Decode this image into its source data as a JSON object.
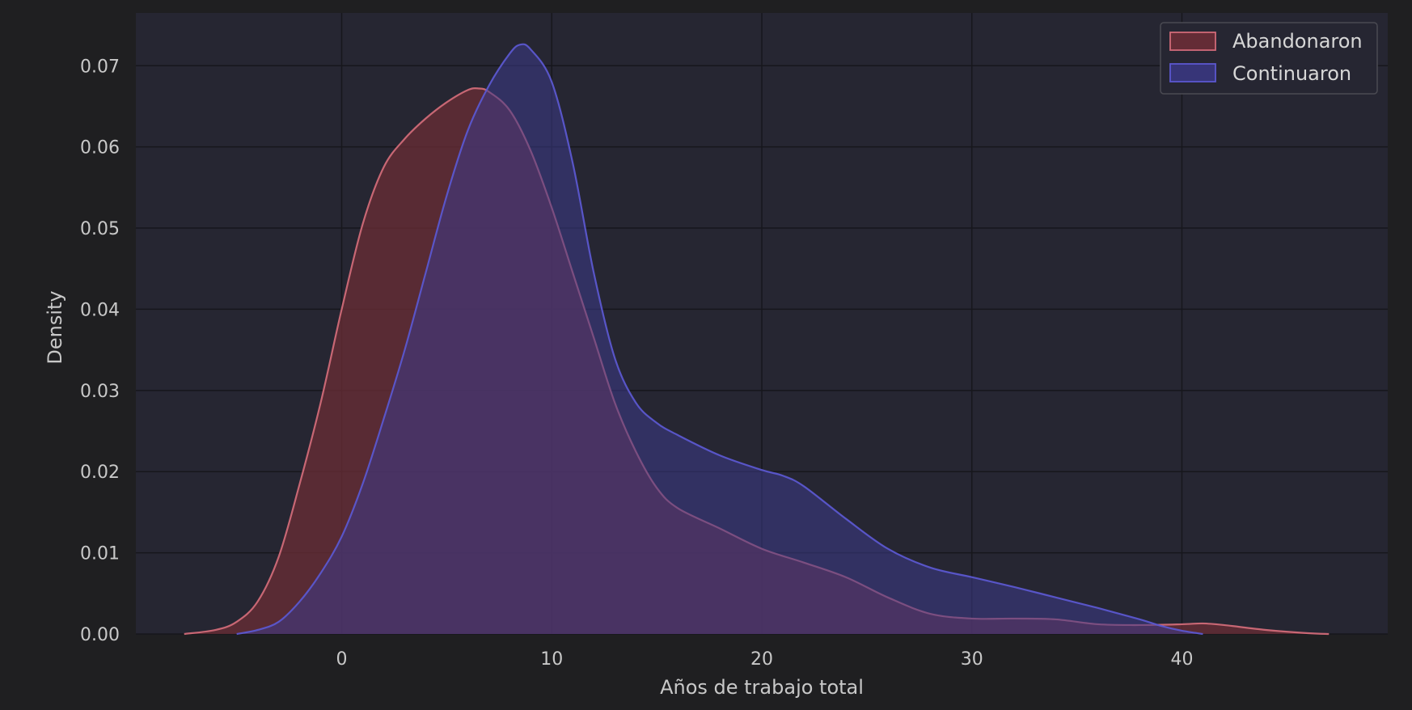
{
  "chart_data": {
    "type": "area",
    "title": "",
    "xlabel": "Años de trabajo total",
    "ylabel": "Density",
    "xlim": [
      -9.8,
      49.8
    ],
    "ylim": [
      0,
      0.0765
    ],
    "xticks": [
      0,
      10,
      20,
      30,
      40
    ],
    "yticks": [
      0.0,
      0.01,
      0.02,
      0.03,
      0.04,
      0.05,
      0.06,
      0.07
    ],
    "ytick_labels": [
      "0.00",
      "0.01",
      "0.02",
      "0.03",
      "0.04",
      "0.05",
      "0.06",
      "0.07"
    ],
    "grid": true,
    "legend_position": "top-right",
    "colors": {
      "figure_bg": "#1f1f21",
      "plot_bg": "#262632",
      "grid": "#17171c",
      "abandonaron_fill": "#6b2d36",
      "abandonaron_line": "#d06a78",
      "continuaron_fill": "#3c3a8a",
      "continuaron_line": "#5b57cf"
    },
    "series": [
      {
        "name": "Abandonaron",
        "x": [
          -7.5,
          -6,
          -5,
          -4,
          -3,
          -2,
          -1,
          0,
          1,
          2,
          3,
          4,
          5,
          6,
          6.5,
          7,
          8,
          9,
          10,
          11,
          12,
          13,
          14,
          15,
          16,
          18,
          20,
          22,
          24,
          26,
          28,
          30,
          32,
          34,
          36,
          38,
          40,
          41,
          42,
          44,
          46,
          47
        ],
        "y": [
          0.0,
          0.0005,
          0.0015,
          0.004,
          0.0095,
          0.0185,
          0.0285,
          0.04,
          0.0505,
          0.0575,
          0.061,
          0.0635,
          0.0655,
          0.067,
          0.0672,
          0.0668,
          0.0645,
          0.0595,
          0.0525,
          0.0445,
          0.0365,
          0.0285,
          0.0225,
          0.018,
          0.0155,
          0.013,
          0.0105,
          0.0088,
          0.007,
          0.0045,
          0.0025,
          0.0019,
          0.0019,
          0.0018,
          0.0012,
          0.0011,
          0.0012,
          0.0013,
          0.0011,
          0.0005,
          0.0001,
          0.0
        ]
      },
      {
        "name": "Continuaron",
        "x": [
          -5,
          -4,
          -3,
          -2,
          -1,
          0,
          1,
          2,
          3,
          4,
          5,
          6,
          7,
          8,
          8.5,
          9,
          10,
          11,
          12,
          13,
          14,
          15,
          16,
          18,
          20,
          21,
          22,
          24,
          26,
          28,
          30,
          32,
          34,
          36,
          38,
          39,
          40,
          41
        ],
        "y": [
          0.0,
          0.0005,
          0.0015,
          0.004,
          0.0075,
          0.012,
          0.0185,
          0.0265,
          0.035,
          0.0445,
          0.054,
          0.062,
          0.0675,
          0.0715,
          0.0726,
          0.072,
          0.068,
          0.058,
          0.0445,
          0.034,
          0.0285,
          0.026,
          0.0245,
          0.022,
          0.0202,
          0.0195,
          0.0182,
          0.0142,
          0.0105,
          0.0082,
          0.007,
          0.0058,
          0.0045,
          0.0032,
          0.0018,
          0.001,
          0.0004,
          0.0
        ]
      }
    ]
  }
}
